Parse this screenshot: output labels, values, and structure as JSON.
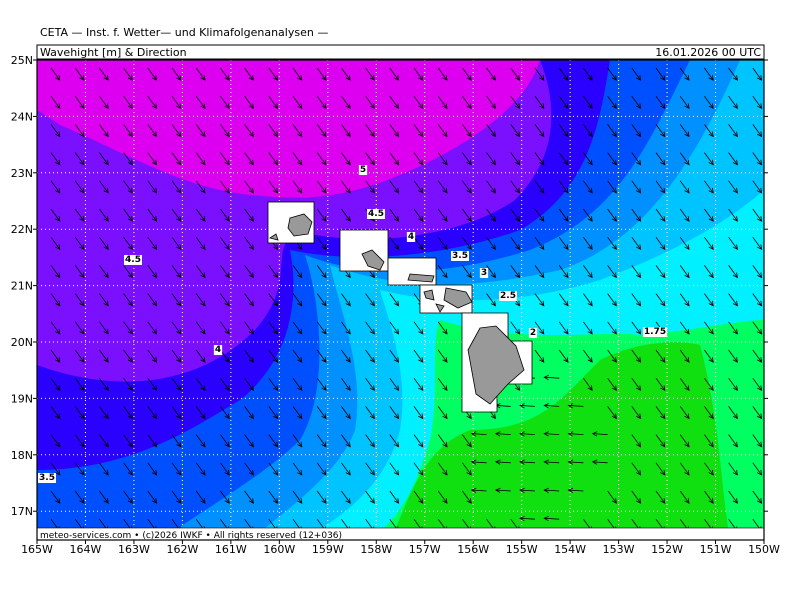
{
  "header": {
    "title": "CETA — Inst. f. Wetter— und Klimafolgenanalysen —",
    "subtitle": "Wavehight [m] & Direction",
    "timestamp": "16.01.2026 00 UTC"
  },
  "map": {
    "lat_labels": [
      "25N",
      "24N",
      "23N",
      "22N",
      "21N",
      "20N",
      "19N",
      "18N",
      "17N"
    ],
    "lon_labels": [
      "165W",
      "164W",
      "163W",
      "162W",
      "161W",
      "160W",
      "159W",
      "158W",
      "157W",
      "156W",
      "155W",
      "154W",
      "153W",
      "152W",
      "151W",
      "150W"
    ],
    "contour_labels": [
      "5",
      "4.5",
      "4",
      "3.5",
      "3",
      "2.5",
      "2",
      "1.75",
      "4.5",
      "4",
      "3.5"
    ]
  },
  "footer": "meteo-services.com • (c)2026 IWKF • All rights reserved (12+036)"
}
